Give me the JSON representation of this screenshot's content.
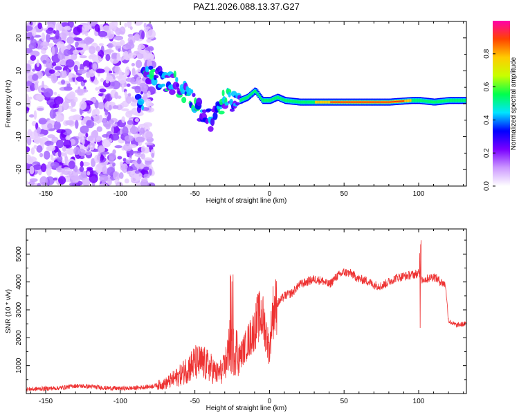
{
  "title": "PAZ1.2026.088.13.37.G27",
  "chart_data": [
    {
      "type": "heatmap",
      "name": "spectrogram",
      "xlabel": "Height of straight line (km)",
      "ylabel": "Frequency (Hz)",
      "xlim": [
        -163,
        132
      ],
      "ylim": [
        -25,
        25
      ],
      "xticks": [
        -150,
        -100,
        -50,
        0,
        50,
        100
      ],
      "yticks": [
        -20,
        -10,
        0,
        10,
        20
      ],
      "colorbar": {
        "label": "Normalized spectral amplitude",
        "range": [
          0,
          1
        ],
        "ticks": [
          "0.0",
          "0.2",
          "0.4",
          "0.6",
          "0.8"
        ],
        "colors": [
          "#ffffff",
          "#cc99ff",
          "#7a00ff",
          "#0000ff",
          "#00e5ff",
          "#00ff4d",
          "#c8ff00",
          "#ffcc00",
          "#ff4400",
          "#ff00aa"
        ]
      },
      "ridge": {
        "description_points_x": [
          -85,
          -75,
          -70,
          -62,
          -58,
          -54,
          -50,
          -45,
          -40,
          -35,
          -30,
          -25,
          -20,
          -15,
          -10,
          -5,
          0,
          5,
          10,
          20,
          40,
          60,
          80,
          95,
          100,
          110,
          120,
          132
        ],
        "frequency_y": [
          10,
          8,
          7,
          6,
          4,
          3,
          0,
          -3,
          -5,
          -3,
          2,
          0,
          1,
          2,
          4,
          1,
          1,
          2,
          1,
          0.5,
          0.5,
          0.5,
          0.5,
          1,
          1,
          0.5,
          1,
          1
        ]
      }
    },
    {
      "type": "line",
      "name": "snr",
      "xlabel": "Height of straight line (km)",
      "ylabel": "SNR (10 * v/v)",
      "xlim": [
        -163,
        132
      ],
      "ylim": [
        0,
        5900
      ],
      "xticks": [
        -150,
        -100,
        -50,
        0,
        50,
        100
      ],
      "yticks": [
        1000,
        2000,
        3000,
        4000,
        5000
      ],
      "color": "#ee3333",
      "x": [
        -163,
        -150,
        -140,
        -130,
        -120,
        -110,
        -100,
        -90,
        -80,
        -75,
        -70,
        -65,
        -60,
        -55,
        -50,
        -45,
        -40,
        -35,
        -30,
        -27,
        -25,
        -22,
        -20,
        -15,
        -10,
        -8,
        -5,
        -2,
        0,
        2,
        5,
        10,
        15,
        20,
        25,
        30,
        35,
        40,
        45,
        50,
        55,
        60,
        65,
        70,
        75,
        80,
        85,
        90,
        95,
        100,
        102,
        105,
        110,
        115,
        118,
        120,
        125,
        132
      ],
      "y": [
        150,
        180,
        200,
        280,
        250,
        200,
        180,
        200,
        250,
        300,
        350,
        500,
        650,
        900,
        1100,
        1100,
        950,
        700,
        900,
        1800,
        1500,
        1600,
        1300,
        1800,
        2300,
        2700,
        2800,
        2100,
        1500,
        2900,
        3200,
        3500,
        3600,
        3900,
        4000,
        4100,
        4050,
        3900,
        4200,
        4350,
        4300,
        4100,
        4050,
        3900,
        3850,
        4000,
        4150,
        4200,
        4250,
        4300,
        4100,
        4100,
        4200,
        4000,
        3900,
        2600,
        2450,
        2500
      ]
    }
  ]
}
